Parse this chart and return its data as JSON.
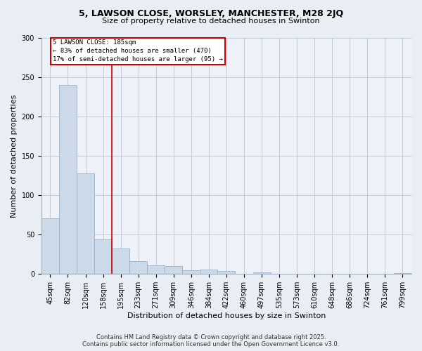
{
  "title_line1": "5, LAWSON CLOSE, WORSLEY, MANCHESTER, M28 2JQ",
  "title_line2": "Size of property relative to detached houses in Swinton",
  "xlabel": "Distribution of detached houses by size in Swinton",
  "ylabel": "Number of detached properties",
  "categories": [
    "45sqm",
    "82sqm",
    "120sqm",
    "158sqm",
    "195sqm",
    "233sqm",
    "271sqm",
    "309sqm",
    "346sqm",
    "384sqm",
    "422sqm",
    "460sqm",
    "497sqm",
    "535sqm",
    "573sqm",
    "610sqm",
    "648sqm",
    "686sqm",
    "724sqm",
    "761sqm",
    "799sqm"
  ],
  "values": [
    71,
    240,
    128,
    44,
    32,
    16,
    11,
    10,
    5,
    6,
    4,
    0,
    2,
    0,
    0,
    0,
    0,
    0,
    0,
    0,
    1
  ],
  "bar_color": "#ccd9e8",
  "bar_edge_color": "#9ab0c8",
  "vline_color": "#cc0000",
  "ylim": [
    0,
    300
  ],
  "yticks": [
    0,
    50,
    100,
    150,
    200,
    250,
    300
  ],
  "annotation_title": "5 LAWSON CLOSE: 185sqm",
  "annotation_line1": "← 83% of detached houses are smaller (470)",
  "annotation_line2": "17% of semi-detached houses are larger (95) →",
  "annotation_box_color": "#ffffff",
  "annotation_box_edge_color": "#cc0000",
  "footer_line1": "Contains HM Land Registry data © Crown copyright and database right 2025.",
  "footer_line2": "Contains public sector information licensed under the Open Government Licence v3.0.",
  "background_color": "#e8eef4",
  "plot_background_color": "#eef2f8",
  "grid_color": "#c0ccd8",
  "title_fontsize": 9,
  "subtitle_fontsize": 8,
  "xlabel_fontsize": 8,
  "ylabel_fontsize": 8,
  "tick_fontsize": 7,
  "footer_fontsize": 6
}
